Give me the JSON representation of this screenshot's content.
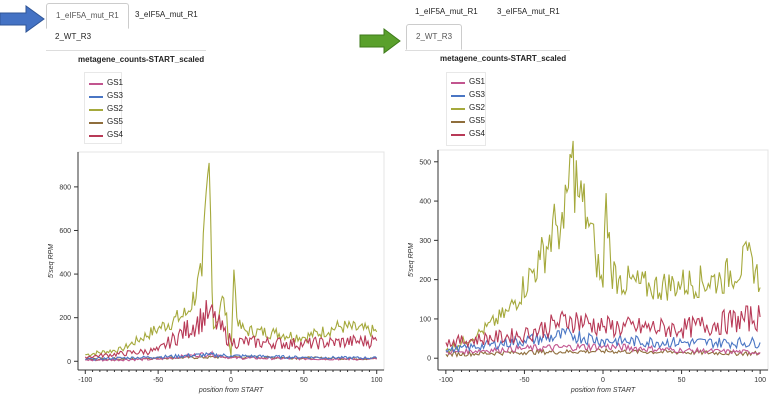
{
  "colors": {
    "GS1": "#c2558f",
    "GS3": "#4a76c4",
    "GS2": "#a5a93c",
    "GS5": "#8f6e3c",
    "GS4": "#b83a57",
    "arrow_blue": "#4472c4",
    "arrow_green": "#5aa02c"
  },
  "left": {
    "tabs": [
      "1_eIF5A_mut_R1",
      "3_eIF5A_mut_R1",
      "2_WT_R3"
    ],
    "active_tab": "1_eIF5A_mut_R1",
    "title": "metagene_counts-START_scaled",
    "legend": [
      "GS1",
      "GS3",
      "GS2",
      "GS5",
      "GS4"
    ]
  },
  "right": {
    "tabs": [
      "1_eIF5A_mut_R1",
      "3_eIF5A_mut_R1",
      "2_WT_R3"
    ],
    "active_tab": "2_WT_R3",
    "title": "metagene_counts-START_scaled",
    "legend": [
      "GS1",
      "GS3",
      "GS2",
      "GS5",
      "GS4"
    ]
  },
  "chart_data": [
    {
      "type": "line",
      "xlabel": "position from START",
      "ylabel": "5'seq RPM",
      "xlim": [
        -105,
        105
      ],
      "ylim": [
        -40,
        960
      ],
      "xticks": [
        -100,
        -50,
        0,
        50,
        100
      ],
      "yticks": [
        0,
        200,
        400,
        600,
        800
      ],
      "series": [
        {
          "name": "GS1",
          "x": [
            -100,
            -50,
            -15,
            0,
            50,
            100
          ],
          "values": [
            5,
            10,
            35,
            15,
            12,
            10
          ]
        },
        {
          "name": "GS3",
          "x": [
            -100,
            -50,
            -15,
            0,
            50,
            100
          ],
          "values": [
            10,
            20,
            30,
            25,
            18,
            15
          ]
        },
        {
          "name": "GS2",
          "x": [
            -100,
            -75,
            -50,
            -30,
            -20,
            -15,
            -12,
            -5,
            0,
            2,
            5,
            10,
            30,
            50,
            75,
            100
          ],
          "values": [
            30,
            55,
            150,
            220,
            390,
            910,
            150,
            290,
            25,
            420,
            160,
            140,
            130,
            110,
            160,
            135
          ]
        },
        {
          "name": "GS5",
          "x": [
            -100,
            -50,
            0,
            50,
            100
          ],
          "values": [
            8,
            15,
            20,
            15,
            12
          ]
        },
        {
          "name": "GS4",
          "x": [
            -100,
            -50,
            -15,
            0,
            50,
            100
          ],
          "values": [
            20,
            50,
            220,
            90,
            80,
            95
          ]
        }
      ]
    },
    {
      "type": "line",
      "xlabel": "position from START",
      "ylabel": "5'seq RPM",
      "xlim": [
        -105,
        105
      ],
      "ylim": [
        -30,
        530
      ],
      "xticks": [
        -100,
        -50,
        0,
        50,
        100
      ],
      "yticks": [
        0,
        100,
        200,
        300,
        400,
        500
      ],
      "series": [
        {
          "name": "GS1",
          "x": [
            -100,
            -50,
            0,
            50,
            100
          ],
          "values": [
            15,
            25,
            30,
            20,
            15
          ]
        },
        {
          "name": "GS3",
          "x": [
            -100,
            -50,
            -20,
            0,
            50,
            100
          ],
          "values": [
            20,
            45,
            60,
            45,
            40,
            40
          ]
        },
        {
          "name": "GS2",
          "x": [
            -100,
            -80,
            -60,
            -40,
            -30,
            -25,
            -20,
            -15,
            -10,
            -5,
            0,
            2,
            5,
            10,
            30,
            50,
            75,
            95,
            100
          ],
          "values": [
            20,
            60,
            120,
            250,
            340,
            330,
            510,
            410,
            360,
            270,
            180,
            420,
            230,
            200,
            180,
            190,
            200,
            255,
            180
          ]
        },
        {
          "name": "GS5",
          "x": [
            -100,
            -50,
            0,
            50,
            100
          ],
          "values": [
            10,
            15,
            18,
            15,
            12
          ]
        },
        {
          "name": "GS4",
          "x": [
            -100,
            -50,
            -20,
            0,
            50,
            100
          ],
          "values": [
            40,
            60,
            100,
            80,
            75,
            105
          ]
        }
      ]
    }
  ]
}
